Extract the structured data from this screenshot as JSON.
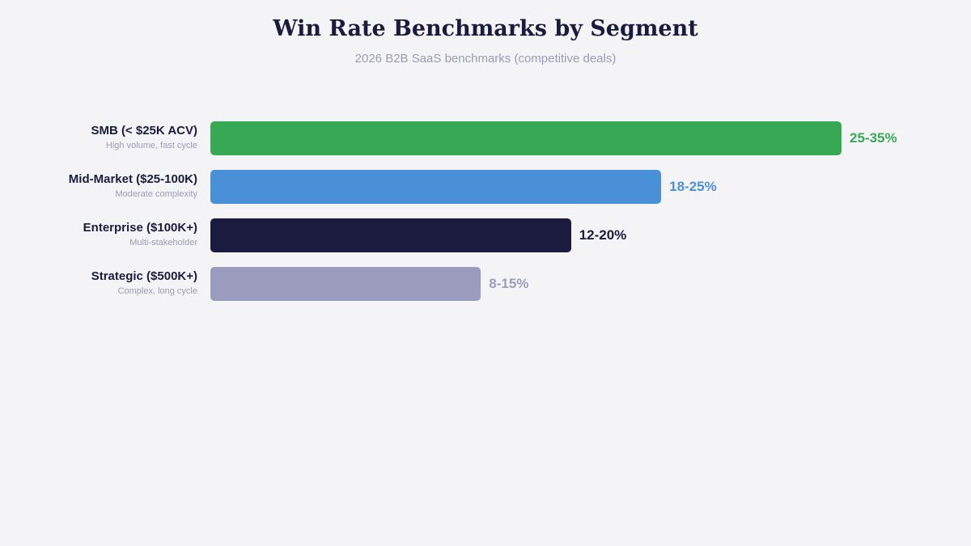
{
  "chart_data": {
    "type": "bar",
    "orientation": "horizontal",
    "title": "Win Rate Benchmarks by Segment",
    "subtitle": "2026 B2B SaaS benchmarks (competitive deals)",
    "xlabel": "",
    "ylabel": "",
    "unit": "%",
    "xlim": [
      0,
      35
    ],
    "grid": false,
    "legend": "none",
    "categories": [
      "SMB (< $25K ACV)",
      "Mid-Market ($25-100K)",
      "Enterprise ($100K+)",
      "Strategic ($500K+)"
    ],
    "notes": [
      "High volume, fast cycle",
      "Moderate complexity",
      "Multi-stakeholder",
      "Complex, long cycle"
    ],
    "ranges": [
      [
        25,
        35
      ],
      [
        18,
        25
      ],
      [
        12,
        20
      ],
      [
        8,
        15
      ]
    ],
    "values": [
      35,
      25,
      20,
      15
    ],
    "data_labels": [
      "25-35%",
      "18-25%",
      "12-20%",
      "8-15%"
    ],
    "colors": [
      "#37a955",
      "#4a90d9",
      "#1b1b3f",
      "#9b9bbd"
    ]
  }
}
